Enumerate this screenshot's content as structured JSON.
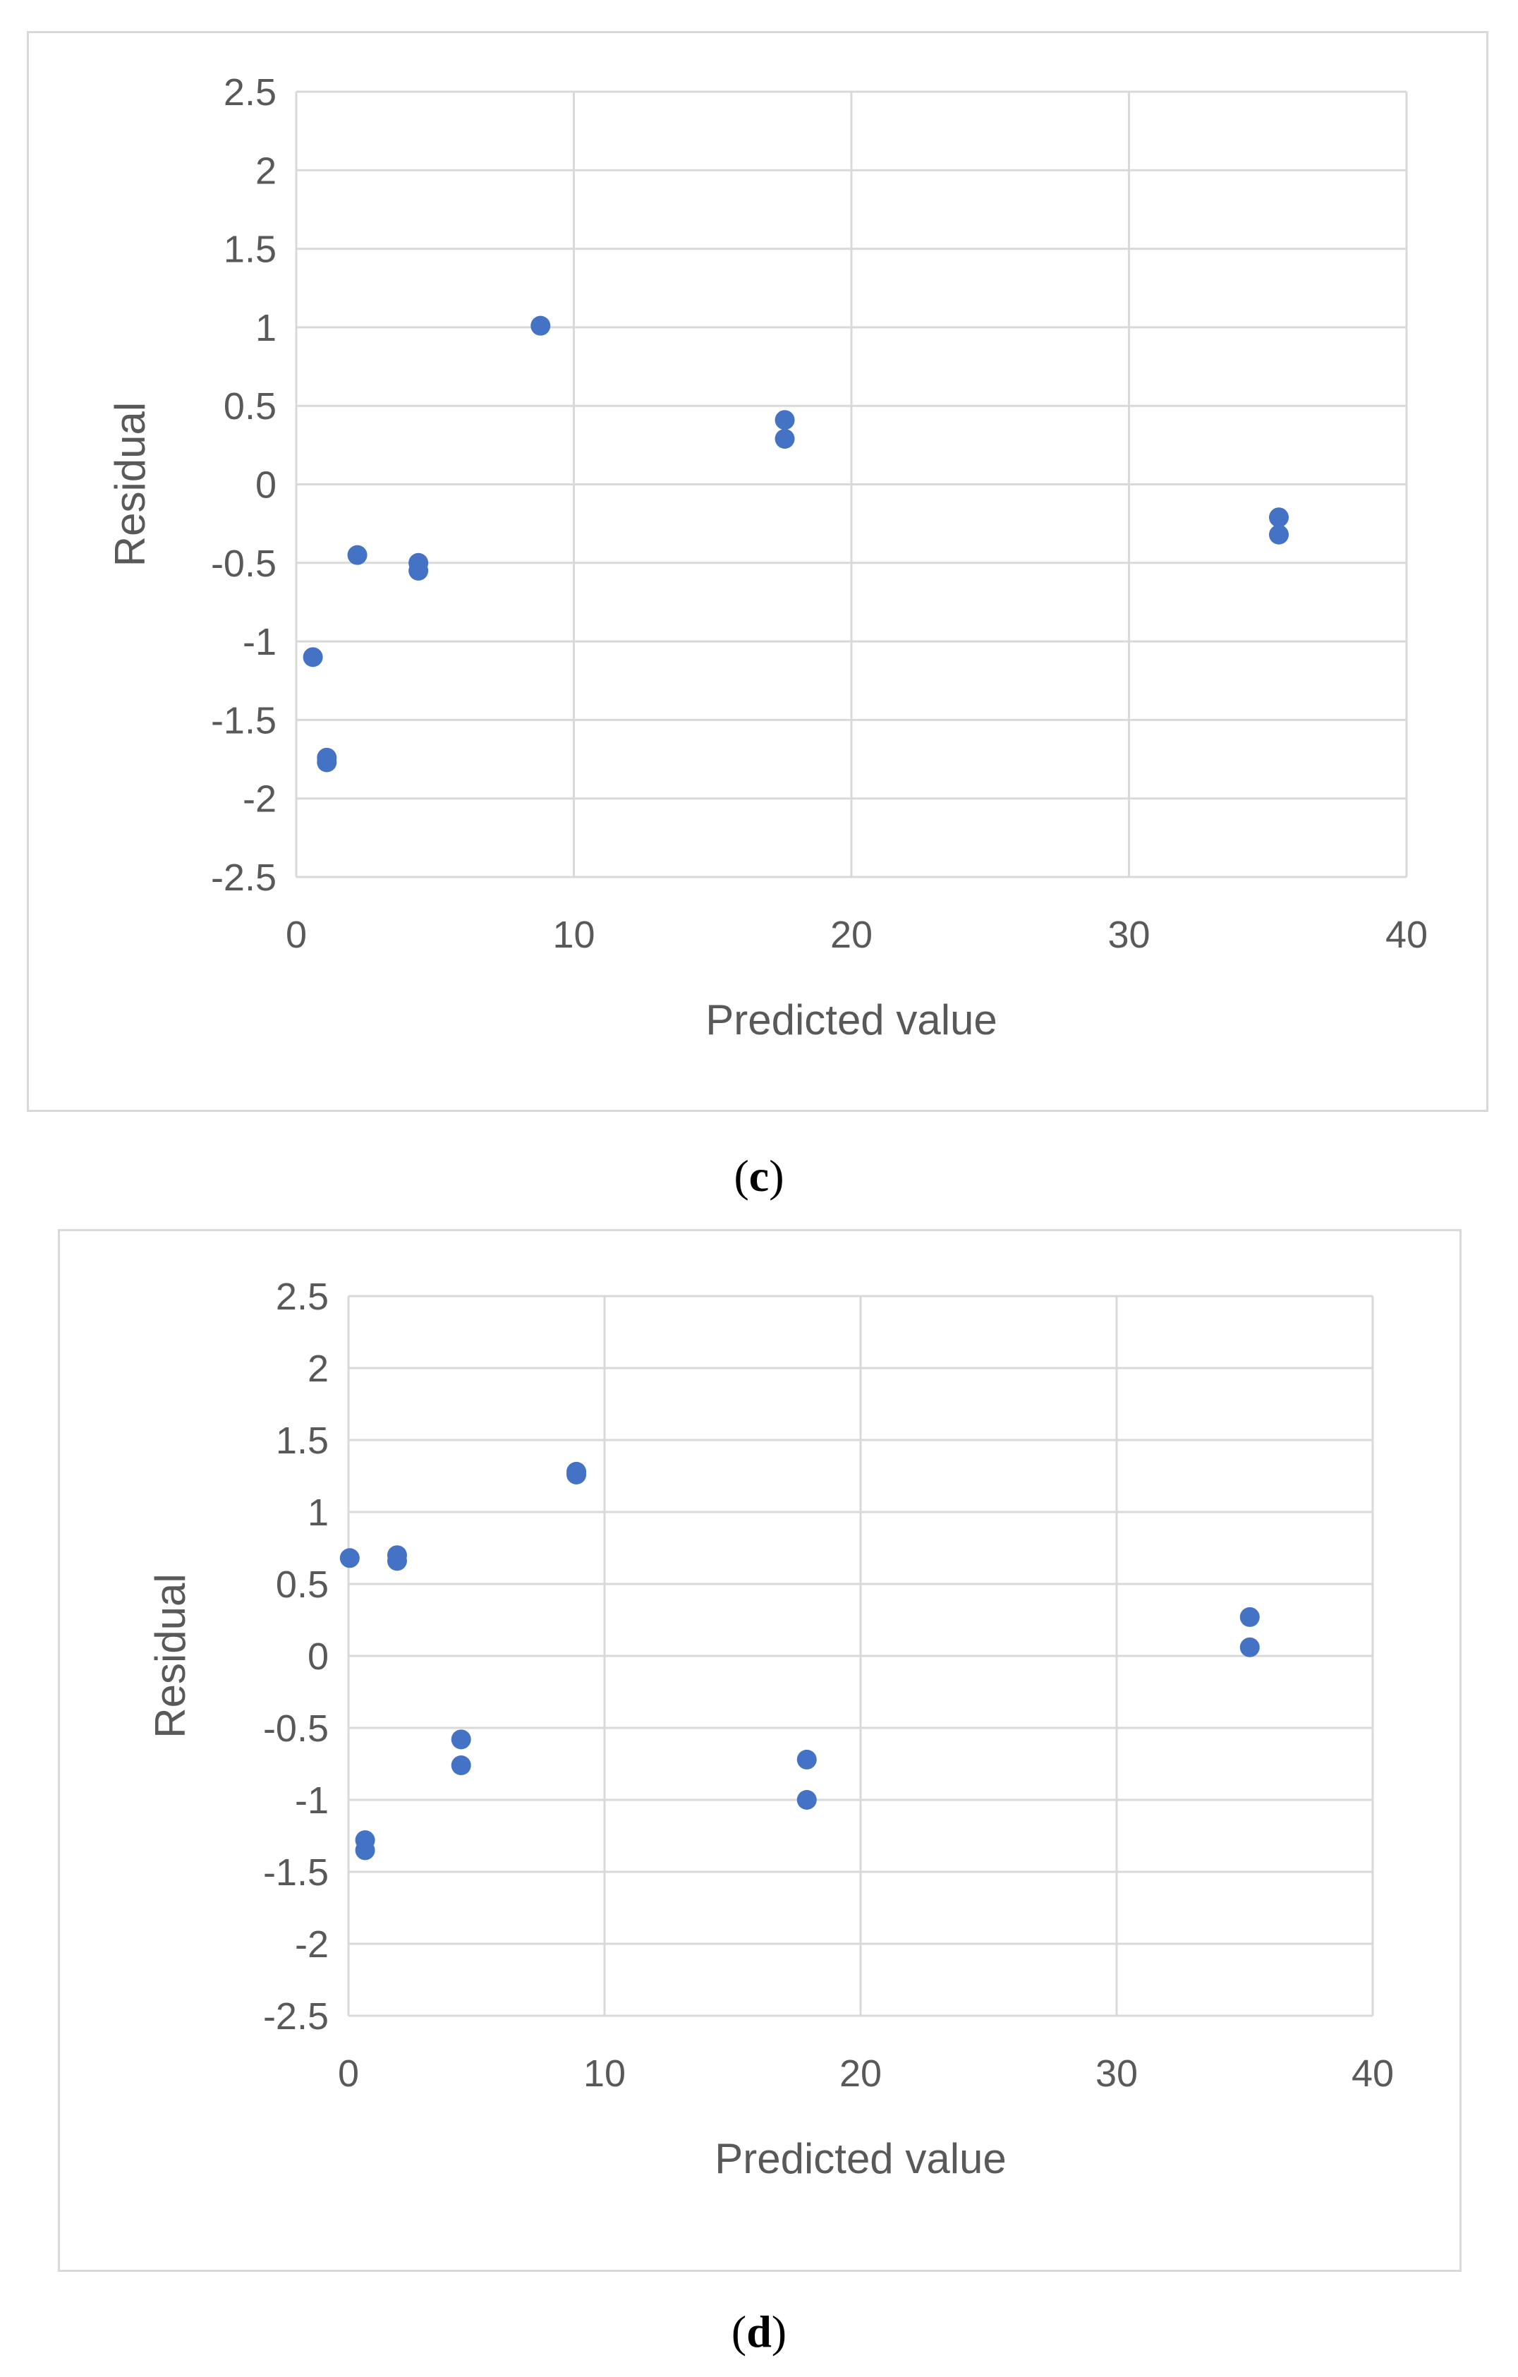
{
  "chart_data": [
    {
      "type": "scatter",
      "panel": "c",
      "caption_open": "(",
      "caption_letter": "c",
      "caption_close": ")",
      "xlabel": "Predicted value",
      "ylabel": "Residual",
      "xlim": [
        0,
        40
      ],
      "ylim": [
        -2.5,
        2.5
      ],
      "xticks": [
        0,
        10,
        20,
        30,
        40
      ],
      "yticks": [
        2.5,
        2,
        1.5,
        1,
        0.5,
        0,
        -0.5,
        -1,
        -1.5,
        -2,
        -2.5
      ],
      "ytick_labels": [
        "2.5",
        "2",
        "1.5",
        "1",
        "0.5",
        "0",
        "-0.5",
        "-1",
        "-1.5",
        "-2",
        "-2.5"
      ],
      "xtick_labels": [
        "0",
        "10",
        "20",
        "30",
        "40"
      ],
      "grid": true,
      "marker_color": "#4472c4",
      "points": [
        {
          "x": 0.6,
          "y": -1.1
        },
        {
          "x": 1.1,
          "y": -1.74
        },
        {
          "x": 1.1,
          "y": -1.77
        },
        {
          "x": 2.2,
          "y": -0.45
        },
        {
          "x": 4.4,
          "y": -0.5
        },
        {
          "x": 4.4,
          "y": -0.55
        },
        {
          "x": 8.8,
          "y": 1.01
        },
        {
          "x": 17.6,
          "y": 0.41
        },
        {
          "x": 17.6,
          "y": 0.29
        },
        {
          "x": 35.4,
          "y": -0.21
        },
        {
          "x": 35.4,
          "y": -0.32
        }
      ]
    },
    {
      "type": "scatter",
      "panel": "d",
      "caption_open": "(",
      "caption_letter": "d",
      "caption_close": ")",
      "xlabel": "Predicted value",
      "ylabel": "Residual",
      "xlim": [
        0,
        40
      ],
      "ylim": [
        -2.5,
        2.5
      ],
      "xticks": [
        0,
        10,
        20,
        30,
        40
      ],
      "yticks": [
        2.5,
        2,
        1.5,
        1,
        0.5,
        0,
        -0.5,
        -1,
        -1.5,
        -2,
        -2.5
      ],
      "ytick_labels": [
        "2.5",
        "2",
        "1.5",
        "1",
        "0.5",
        "0",
        "-0.5",
        "-1",
        "-1.5",
        "-2",
        "-2.5"
      ],
      "xtick_labels": [
        "0",
        "10",
        "20",
        "30",
        "40"
      ],
      "grid": true,
      "marker_color": "#4472c4",
      "points": [
        {
          "x": 0.05,
          "y": 0.68
        },
        {
          "x": 0.65,
          "y": -1.28
        },
        {
          "x": 0.65,
          "y": -1.35
        },
        {
          "x": 1.9,
          "y": 0.7
        },
        {
          "x": 1.9,
          "y": 0.66
        },
        {
          "x": 4.4,
          "y": -0.58
        },
        {
          "x": 4.4,
          "y": -0.76
        },
        {
          "x": 8.9,
          "y": 1.28
        },
        {
          "x": 8.9,
          "y": 1.26
        },
        {
          "x": 17.9,
          "y": -0.72
        },
        {
          "x": 17.9,
          "y": -1.0
        },
        {
          "x": 35.2,
          "y": 0.27
        },
        {
          "x": 35.2,
          "y": 0.06
        }
      ]
    }
  ]
}
